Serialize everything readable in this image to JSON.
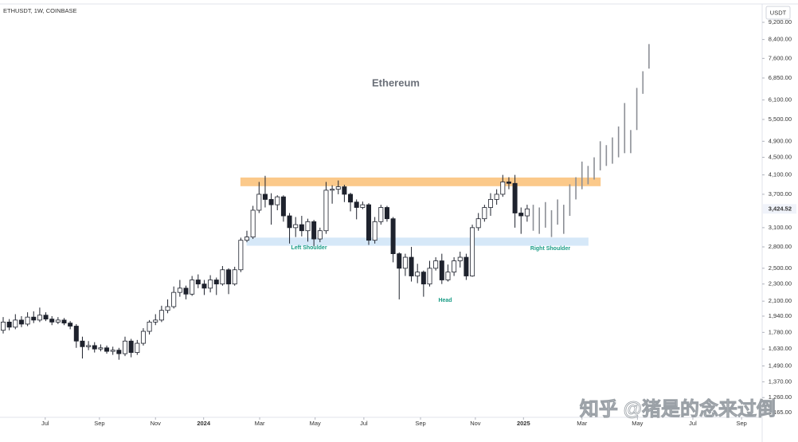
{
  "chart_data": {
    "type": "candlestick",
    "symbol": "ETHUSDT, 1W, COINBASE",
    "currency": "USDT",
    "title": "Ethereum",
    "watermark": "知乎 @猪是的念来过倒",
    "log_scale": true,
    "ylim": [
      1135,
      10140
    ],
    "yticks": [
      {
        "value": 9200,
        "label": "9,200.00"
      },
      {
        "value": 8400,
        "label": "8,400.00"
      },
      {
        "value": 7600,
        "label": "7,600.00"
      },
      {
        "value": 6850,
        "label": "6,850.00"
      },
      {
        "value": 6100,
        "label": "6,100.00"
      },
      {
        "value": 5500,
        "label": "5,500.00"
      },
      {
        "value": 4900,
        "label": "4,900.00"
      },
      {
        "value": 4500,
        "label": "4,500.00"
      },
      {
        "value": 4100,
        "label": "4,100.00"
      },
      {
        "value": 3700,
        "label": "3,700.00"
      },
      {
        "value": 3100,
        "label": "3,100.00"
      },
      {
        "value": 2800,
        "label": "2,800.00"
      },
      {
        "value": 2500,
        "label": "2,500.00"
      },
      {
        "value": 2300,
        "label": "2,300.00"
      },
      {
        "value": 2100,
        "label": "2,100.00"
      },
      {
        "value": 1940,
        "label": "1,940.00"
      },
      {
        "value": 1780,
        "label": "1,780.00"
      },
      {
        "value": 1630,
        "label": "1,630.00"
      },
      {
        "value": 1490,
        "label": "1,490.00"
      },
      {
        "value": 1370,
        "label": "1,370.00"
      },
      {
        "value": 1260,
        "label": "1,260.00"
      },
      {
        "value": 1165,
        "label": "1,165.00"
      }
    ],
    "last_price": {
      "value": 3424.52,
      "label": "3,424.52"
    },
    "xticks": [
      {
        "value": 6.9,
        "label": "Jul"
      },
      {
        "value": 15.8,
        "label": "Sep"
      },
      {
        "value": 25,
        "label": "Nov"
      },
      {
        "value": 32.9,
        "label": "2024"
      },
      {
        "value": 42.1,
        "label": "Mar"
      },
      {
        "value": 51.2,
        "label": "May"
      },
      {
        "value": 59.2,
        "label": "Jul"
      },
      {
        "value": 68.5,
        "label": "Sep"
      },
      {
        "value": 77.5,
        "label": "Nov"
      },
      {
        "value": 85.4,
        "label": "2025"
      },
      {
        "value": 95,
        "label": "Mar"
      },
      {
        "value": 104.1,
        "label": "May"
      },
      {
        "value": 113.2,
        "label": "Jul"
      },
      {
        "value": 121.2,
        "label": "Sep"
      }
    ],
    "open": [
      1800,
      1880,
      1830,
      1900,
      1860,
      1930,
      1900,
      1950,
      1910,
      1880,
      1900,
      1870,
      1840,
      1700,
      1650,
      1660,
      1630,
      1640,
      1610,
      1620,
      1590,
      1700,
      1600,
      1680,
      1790,
      1880,
      1900,
      2000,
      2040,
      2200,
      2250,
      2180,
      2350,
      2300,
      2250,
      2350,
      2300,
      2480,
      2300,
      2480,
      2900,
      2950,
      3400,
      3700,
      3600,
      3500,
      3650,
      3300,
      3100,
      3150,
      3050,
      3200,
      2920,
      3050,
      3780,
      3800,
      3850,
      3700,
      3550,
      3450,
      3500,
      2900,
      3200,
      3450,
      3250,
      2700,
      2500,
      2650,
      2400,
      2450,
      2300,
      2500,
      2600,
      2350,
      2450,
      2600,
      2650,
      2400,
      3100,
      3250,
      3450,
      3600,
      3700,
      3950,
      3920,
      3350,
      3300
    ],
    "high": [
      1930,
      1910,
      1960,
      1940,
      1980,
      1990,
      2030,
      1980,
      1940,
      1930,
      1920,
      1890,
      1860,
      1740,
      1700,
      1690,
      1670,
      1660,
      1650,
      1640,
      1740,
      1720,
      1710,
      1820,
      1900,
      1960,
      2050,
      2120,
      2270,
      2350,
      2280,
      2400,
      2420,
      2350,
      2410,
      2380,
      2530,
      2500,
      2520,
      2940,
      3050,
      3480,
      3950,
      4080,
      3720,
      3680,
      3680,
      3350,
      3280,
      3300,
      3250,
      3230,
      3100,
      3950,
      3880,
      3980,
      3890,
      3730,
      3600,
      3560,
      3530,
      3280,
      3500,
      3480,
      3280,
      2720,
      2700,
      2800,
      2560,
      2470,
      2600,
      2650,
      2700,
      2550,
      2650,
      2730,
      2700,
      3150,
      3350,
      3500,
      3720,
      3800,
      4100,
      4050,
      4100,
      3450,
      3500
    ],
    "low": [
      1770,
      1800,
      1810,
      1830,
      1840,
      1870,
      1880,
      1890,
      1850,
      1860,
      1850,
      1810,
      1640,
      1550,
      1620,
      1600,
      1610,
      1590,
      1580,
      1540,
      1570,
      1560,
      1580,
      1660,
      1760,
      1850,
      1880,
      1970,
      2020,
      2150,
      2120,
      2160,
      2250,
      2170,
      2200,
      2170,
      2280,
      2180,
      2280,
      2450,
      2870,
      2920,
      3350,
      3450,
      3150,
      3400,
      3200,
      2850,
      2950,
      2960,
      2880,
      2810,
      2870,
      3000,
      3520,
      3700,
      3550,
      3380,
      3240,
      3420,
      2830,
      2850,
      3150,
      3200,
      2580,
      2120,
      2400,
      2330,
      2310,
      2150,
      2270,
      2470,
      2300,
      2330,
      2400,
      2510,
      2350,
      2390,
      3050,
      3200,
      3300,
      3500,
      3650,
      3800,
      3100,
      3000,
      3200
    ],
    "close": [
      1880,
      1830,
      1900,
      1860,
      1930,
      1900,
      1950,
      1910,
      1880,
      1900,
      1870,
      1840,
      1700,
      1650,
      1660,
      1630,
      1640,
      1610,
      1620,
      1590,
      1700,
      1600,
      1680,
      1790,
      1880,
      1900,
      2000,
      2040,
      2200,
      2250,
      2180,
      2350,
      2300,
      2250,
      2350,
      2300,
      2480,
      2300,
      2480,
      2900,
      2950,
      3400,
      3700,
      3600,
      3500,
      3650,
      3300,
      3100,
      3150,
      3050,
      3200,
      2920,
      3050,
      3780,
      3800,
      3850,
      3700,
      3550,
      3450,
      3500,
      2900,
      3200,
      3450,
      3250,
      2700,
      2500,
      2650,
      2400,
      2450,
      2300,
      2500,
      2600,
      2350,
      2450,
      2600,
      2650,
      2400,
      3100,
      3250,
      3450,
      3600,
      3700,
      3950,
      3920,
      3350,
      3300,
      3424.52
    ],
    "up_color": "#ffffff",
    "down_color": "#1e222d",
    "projection": {
      "color": "#8c8f96",
      "high": [
        3500,
        3450,
        3550,
        3400,
        3600,
        3500,
        3900,
        4050,
        4400,
        4300,
        4500,
        4900,
        4800,
        5000,
        5300,
        6000,
        5200,
        6500,
        7100,
        8200
      ],
      "low": [
        3050,
        3000,
        3100,
        2950,
        3150,
        3000,
        3300,
        3600,
        3800,
        3900,
        4000,
        4200,
        4300,
        4350,
        4500,
        4600,
        4600,
        5200,
        6300,
        7200
      ]
    },
    "zones": [
      {
        "from": 39,
        "to": 98,
        "low": 3870,
        "high": 4035,
        "color": "#fbc98a"
      },
      {
        "from": 40,
        "to": 96,
        "low": 2823,
        "high": 2935,
        "color": "#d6e8f8"
      }
    ],
    "annotations": [
      "Left Shoulder",
      "Head",
      "Right Shoulder"
    ]
  }
}
